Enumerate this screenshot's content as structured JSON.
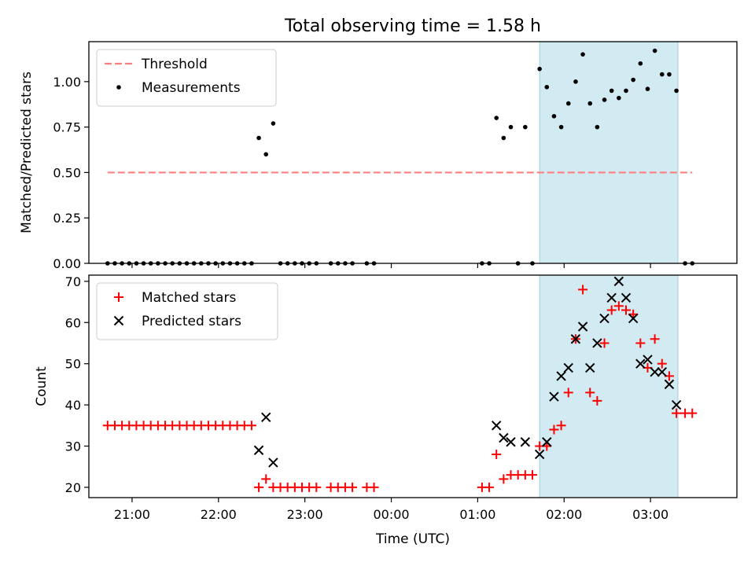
{
  "title": "Total observing time = 1.58 h",
  "chart_data": [
    {
      "type": "scatter",
      "ylabel": "Matched/Predicted stars",
      "xlim": [
        "20:30",
        "04:00"
      ],
      "ylim": [
        0,
        1.22
      ],
      "yticks": [
        "0.00",
        "0.25",
        "0.50",
        "0.75",
        "1.00"
      ],
      "grid": false,
      "legend": "top-left",
      "threshold": {
        "name": "Threshold",
        "value": 0.5,
        "x_range": [
          "20:43",
          "03:29"
        ],
        "color": "#ff7f7f",
        "style": "dashed"
      },
      "shaded_region": {
        "x_range": [
          "01:43",
          "03:19"
        ],
        "color": "#add8e6"
      },
      "series": [
        {
          "name": "Measurements",
          "color": "#000000",
          "marker": "dot",
          "points": [
            [
              "20:43",
              0
            ],
            [
              "20:48",
              0
            ],
            [
              "20:53",
              0
            ],
            [
              "20:58",
              0
            ],
            [
              "21:03",
              0
            ],
            [
              "21:08",
              0
            ],
            [
              "21:13",
              0
            ],
            [
              "21:18",
              0
            ],
            [
              "21:23",
              0
            ],
            [
              "21:28",
              0
            ],
            [
              "21:33",
              0
            ],
            [
              "21:38",
              0
            ],
            [
              "21:43",
              0
            ],
            [
              "21:48",
              0
            ],
            [
              "21:53",
              0
            ],
            [
              "21:58",
              0
            ],
            [
              "22:03",
              0
            ],
            [
              "22:08",
              0
            ],
            [
              "22:13",
              0
            ],
            [
              "22:18",
              0
            ],
            [
              "22:23",
              0
            ],
            [
              "22:28",
              0.69
            ],
            [
              "22:33",
              0.6
            ],
            [
              "22:38",
              0.77
            ],
            [
              "22:43",
              0
            ],
            [
              "22:48",
              0
            ],
            [
              "22:53",
              0
            ],
            [
              "22:58",
              0
            ],
            [
              "23:03",
              0
            ],
            [
              "23:08",
              0
            ],
            [
              "23:18",
              0
            ],
            [
              "23:23",
              0
            ],
            [
              "23:28",
              0
            ],
            [
              "23:33",
              0
            ],
            [
              "23:43",
              0
            ],
            [
              "23:48",
              0
            ],
            [
              "01:03",
              0
            ],
            [
              "01:08",
              0
            ],
            [
              "01:13",
              0.8
            ],
            [
              "01:18",
              0.69
            ],
            [
              "01:23",
              0.75
            ],
            [
              "01:28",
              0
            ],
            [
              "01:33",
              0.75
            ],
            [
              "01:38",
              0
            ],
            [
              "01:43",
              1.07
            ],
            [
              "01:48",
              0.97
            ],
            [
              "01:53",
              0.81
            ],
            [
              "01:58",
              0.75
            ],
            [
              "02:03",
              0.88
            ],
            [
              "02:08",
              1.0
            ],
            [
              "02:13",
              1.15
            ],
            [
              "02:18",
              0.88
            ],
            [
              "02:23",
              0.75
            ],
            [
              "02:28",
              0.9
            ],
            [
              "02:33",
              0.95
            ],
            [
              "02:38",
              0.91
            ],
            [
              "02:43",
              0.95
            ],
            [
              "02:48",
              1.01
            ],
            [
              "02:53",
              1.1
            ],
            [
              "02:58",
              0.96
            ],
            [
              "03:03",
              1.17
            ],
            [
              "03:08",
              1.04
            ],
            [
              "03:13",
              1.04
            ],
            [
              "03:18",
              0.95
            ],
            [
              "03:24",
              0
            ],
            [
              "03:29",
              0
            ]
          ]
        }
      ]
    },
    {
      "type": "scatter",
      "xlabel": "Time (UTC)",
      "ylabel": "Count",
      "xlim": [
        "20:30",
        "04:00"
      ],
      "ylim": [
        17.5,
        71.5
      ],
      "yticks": [
        "20",
        "30",
        "40",
        "50",
        "60",
        "70"
      ],
      "xticks": [
        "21:00",
        "22:00",
        "23:00",
        "00:00",
        "01:00",
        "02:00",
        "03:00"
      ],
      "grid": false,
      "legend": "top-left",
      "shaded_region": {
        "x_range": [
          "01:43",
          "03:19"
        ],
        "color": "#add8e6"
      },
      "series": [
        {
          "name": "Matched stars",
          "color": "#ff0000",
          "marker": "plus",
          "points": [
            [
              "20:43",
              35
            ],
            [
              "20:48",
              35
            ],
            [
              "20:53",
              35
            ],
            [
              "20:58",
              35
            ],
            [
              "21:03",
              35
            ],
            [
              "21:08",
              35
            ],
            [
              "21:13",
              35
            ],
            [
              "21:18",
              35
            ],
            [
              "21:23",
              35
            ],
            [
              "21:28",
              35
            ],
            [
              "21:33",
              35
            ],
            [
              "21:38",
              35
            ],
            [
              "21:43",
              35
            ],
            [
              "21:48",
              35
            ],
            [
              "21:53",
              35
            ],
            [
              "21:58",
              35
            ],
            [
              "22:03",
              35
            ],
            [
              "22:08",
              35
            ],
            [
              "22:13",
              35
            ],
            [
              "22:18",
              35
            ],
            [
              "22:23",
              35
            ],
            [
              "22:28",
              20
            ],
            [
              "22:33",
              22
            ],
            [
              "22:38",
              20
            ],
            [
              "22:43",
              20
            ],
            [
              "22:48",
              20
            ],
            [
              "22:53",
              20
            ],
            [
              "22:58",
              20
            ],
            [
              "23:03",
              20
            ],
            [
              "23:08",
              20
            ],
            [
              "23:18",
              20
            ],
            [
              "23:23",
              20
            ],
            [
              "23:28",
              20
            ],
            [
              "23:33",
              20
            ],
            [
              "23:43",
              20
            ],
            [
              "23:48",
              20
            ],
            [
              "01:03",
              20
            ],
            [
              "01:08",
              20
            ],
            [
              "01:13",
              28
            ],
            [
              "01:18",
              22
            ],
            [
              "01:23",
              23
            ],
            [
              "01:28",
              23
            ],
            [
              "01:33",
              23
            ],
            [
              "01:38",
              23
            ],
            [
              "01:43",
              30
            ],
            [
              "01:48",
              30
            ],
            [
              "01:53",
              34
            ],
            [
              "01:58",
              35
            ],
            [
              "02:03",
              43
            ],
            [
              "02:08",
              56
            ],
            [
              "02:13",
              68
            ],
            [
              "02:18",
              43
            ],
            [
              "02:23",
              41
            ],
            [
              "02:28",
              55
            ],
            [
              "02:33",
              63
            ],
            [
              "02:38",
              64
            ],
            [
              "02:43",
              63
            ],
            [
              "02:48",
              62
            ],
            [
              "02:53",
              55
            ],
            [
              "02:58",
              49
            ],
            [
              "03:03",
              56
            ],
            [
              "03:08",
              50
            ],
            [
              "03:13",
              47
            ],
            [
              "03:18",
              38
            ],
            [
              "03:24",
              38
            ],
            [
              "03:29",
              38
            ]
          ]
        },
        {
          "name": "Predicted stars",
          "color": "#000000",
          "marker": "x",
          "points": [
            [
              "22:28",
              29
            ],
            [
              "22:33",
              37
            ],
            [
              "22:38",
              26
            ],
            [
              "01:13",
              35
            ],
            [
              "01:18",
              32
            ],
            [
              "01:23",
              31
            ],
            [
              "01:33",
              31
            ],
            [
              "01:43",
              28
            ],
            [
              "01:48",
              31
            ],
            [
              "01:53",
              42
            ],
            [
              "01:58",
              47
            ],
            [
              "02:03",
              49
            ],
            [
              "02:08",
              56
            ],
            [
              "02:13",
              59
            ],
            [
              "02:18",
              49
            ],
            [
              "02:23",
              55
            ],
            [
              "02:28",
              61
            ],
            [
              "02:33",
              66
            ],
            [
              "02:38",
              70
            ],
            [
              "02:43",
              66
            ],
            [
              "02:48",
              61
            ],
            [
              "02:53",
              50
            ],
            [
              "02:58",
              51
            ],
            [
              "03:03",
              48
            ],
            [
              "03:08",
              48
            ],
            [
              "03:13",
              45
            ],
            [
              "03:18",
              40
            ]
          ]
        }
      ]
    }
  ]
}
